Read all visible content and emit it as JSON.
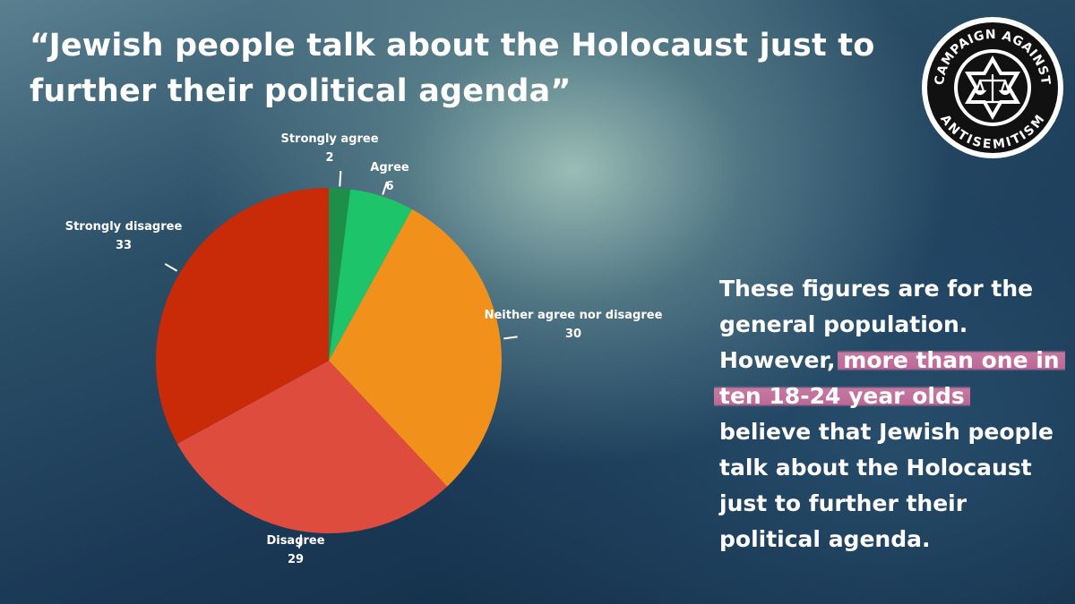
{
  "headline": "“Jewish people talk about the Holocaust just to further their political agenda”",
  "logo": {
    "top_text": "CAMPAIGN AGAINST",
    "bottom_text": "ANTISEMITISM"
  },
  "chart_data": {
    "type": "pie",
    "title": "",
    "slices": [
      {
        "label": "Strongly agree",
        "value": 2,
        "color": "#1e8f48"
      },
      {
        "label": "Agree",
        "value": 6,
        "color": "#1dc46a"
      },
      {
        "label": "Neither agree nor disagree",
        "value": 30,
        "color": "#f2901c"
      },
      {
        "label": "Disagree",
        "value": 29,
        "color": "#de4c3d"
      },
      {
        "label": "Strongly disagree",
        "value": 33,
        "color": "#c92a08"
      }
    ],
    "start": "top",
    "direction": "clockwise"
  },
  "side_text": {
    "before": "These figures are for the general population. However, ",
    "highlight": "more than one in ten 18-24 year olds",
    "after": " believe that Jewish people talk about the Holocaust just to further their political agenda."
  },
  "colors": {
    "highlight": "#e080aa",
    "text": "#ffffff"
  }
}
